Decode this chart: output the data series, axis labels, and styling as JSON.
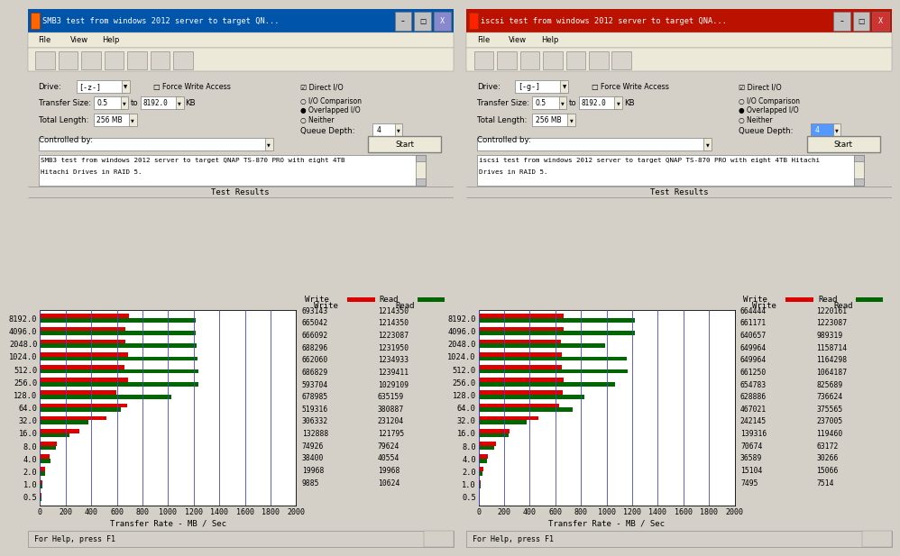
{
  "panels": [
    {
      "title": "SMB3 test from windows 2012 server to target QN...",
      "title_bg": "#0055aa",
      "subtitle_line1": "SMB3 test from windows 2012 server to target QNAP TS-870 PRO with eight 4TB",
      "subtitle_line2": "Hitachi Drives in RAID 5.",
      "drive": "[-z-]",
      "queue_depth": "4",
      "queue_depth_highlight": false,
      "categories": [
        "0.5",
        "1.0",
        "2.0",
        "4.0",
        "8.0",
        "16.0",
        "32.0",
        "64.0",
        "128.0",
        "256.0",
        "512.0",
        "1024.0",
        "2048.0",
        "4096.0",
        "8192.0"
      ],
      "write_vals": [
        9885,
        19968,
        38400,
        74926,
        132888,
        306332,
        519316,
        678985,
        593704,
        686829,
        662060,
        688296,
        666092,
        665042,
        693143
      ],
      "read_vals": [
        10624,
        19968,
        40554,
        79624,
        121795,
        231204,
        380887,
        635159,
        1029109,
        1239411,
        1234933,
        1231950,
        1223087,
        1214350,
        1214350
      ]
    },
    {
      "title": "iscsi test from windows 2012 server to target QNA...",
      "title_bg": "#bb1100",
      "subtitle_line1": "iscsi test from windows 2012 server to target QNAP TS-870 PRO with eight 4TB Hitachi",
      "subtitle_line2": "Drives in RAID 5.",
      "drive": "[-g-]",
      "queue_depth": "4",
      "queue_depth_highlight": true,
      "categories": [
        "0.5",
        "1.0",
        "2.0",
        "4.0",
        "8.0",
        "16.0",
        "32.0",
        "64.0",
        "128.0",
        "256.0",
        "512.0",
        "1024.0",
        "2048.0",
        "4096.0",
        "8192.0"
      ],
      "write_vals": [
        7495,
        15104,
        36589,
        70674,
        139316,
        242145,
        467021,
        628886,
        654783,
        661250,
        649964,
        649964,
        640657,
        661171,
        664444
      ],
      "read_vals": [
        7514,
        15066,
        30266,
        63172,
        119460,
        237005,
        375565,
        736624,
        825689,
        1064187,
        1164298,
        1158714,
        989319,
        1223087,
        1220161
      ]
    }
  ],
  "write_color": "#dd0000",
  "read_color": "#006600",
  "background_color": "#d4d0c8",
  "ui_bg": "#ece9d8",
  "plot_bg": "#ffffff",
  "grid_color": "#4444cc",
  "xticks": [
    0,
    200,
    400,
    600,
    800,
    1000,
    1200,
    1400,
    1600,
    1800,
    2000
  ],
  "xlim": 2000,
  "scale": 1000.0,
  "xlabel": "Transfer Rate - MB / Sec"
}
